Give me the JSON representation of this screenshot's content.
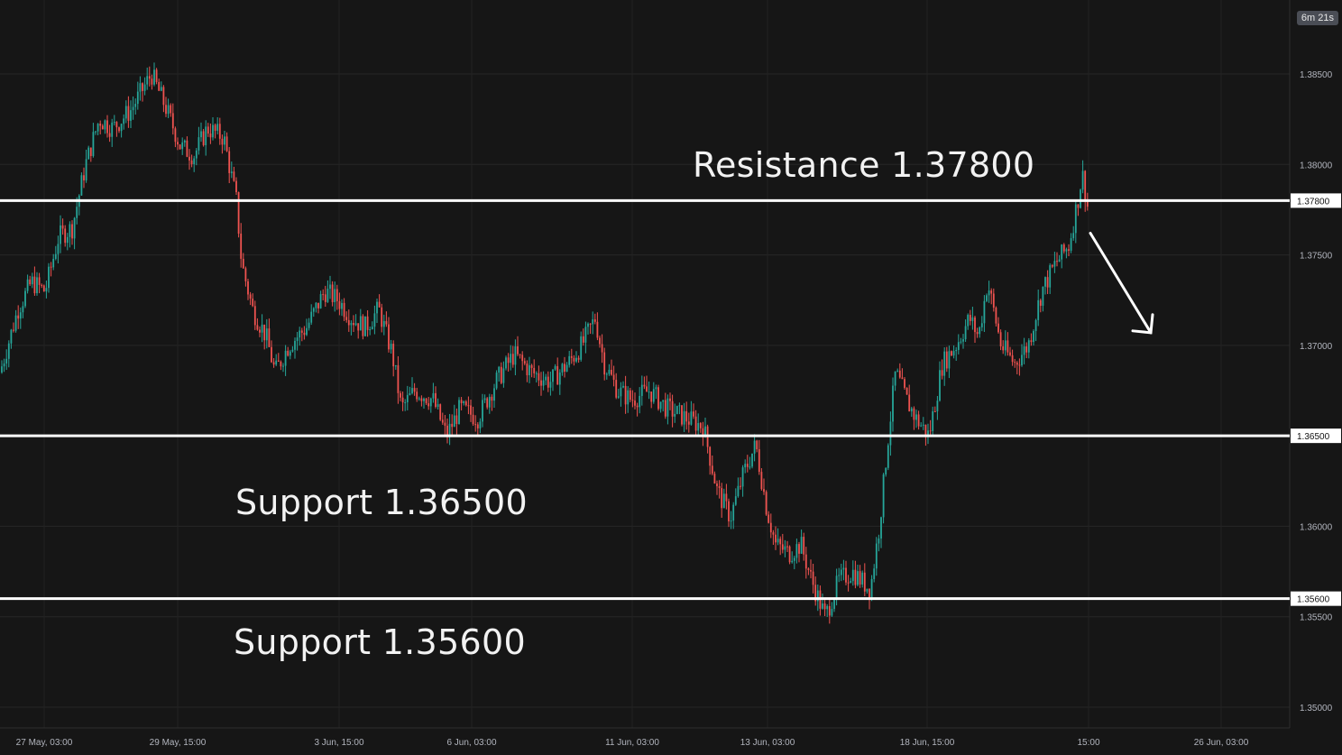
{
  "chart_data": {
    "type": "candlestick",
    "y_ticks": [
      "1.38500",
      "1.38000",
      "1.37500",
      "1.37000",
      "1.36500",
      "1.36000",
      "1.35500",
      "1.35000"
    ],
    "y_tick_values": [
      1.385,
      1.38,
      1.375,
      1.37,
      1.365,
      1.36,
      1.355,
      1.35
    ],
    "ylim": [
      1.3465,
      1.3905
    ],
    "x_ticks": [
      "27 May, 03:00",
      "29 May, 15:00",
      "3 Jun, 15:00",
      "6 Jun, 03:00",
      "11 Jun, 03:00",
      "13 Jun, 03:00",
      "18 Jun, 15:00",
      "15:00",
      "26 Jun, 03:00"
    ],
    "levels": [
      {
        "label": "1.37800",
        "value": 1.378
      },
      {
        "label": "1.36500",
        "value": 1.365
      },
      {
        "label": "1.35600",
        "value": 1.356
      }
    ],
    "annotations": {
      "resistance": "Resistance 1.37800",
      "support1": "Support 1.36500",
      "support2": "Support 1.35600"
    },
    "countdown": "6m 21s",
    "price_path": [
      [
        0,
        1.3685
      ],
      [
        20,
        1.372
      ],
      [
        35,
        1.3735
      ],
      [
        50,
        1.373
      ],
      [
        65,
        1.376
      ],
      [
        80,
        1.3765
      ],
      [
        95,
        1.38
      ],
      [
        110,
        1.3825
      ],
      [
        125,
        1.382
      ],
      [
        145,
        1.383
      ],
      [
        168,
        1.385
      ],
      [
        185,
        1.383
      ],
      [
        200,
        1.381
      ],
      [
        215,
        1.3805
      ],
      [
        230,
        1.382
      ],
      [
        248,
        1.3815
      ],
      [
        262,
        1.378
      ],
      [
        268,
        1.3745
      ],
      [
        280,
        1.372
      ],
      [
        295,
        1.3705
      ],
      [
        305,
        1.3685
      ],
      [
        320,
        1.37
      ],
      [
        340,
        1.371
      ],
      [
        360,
        1.373
      ],
      [
        375,
        1.3725
      ],
      [
        390,
        1.3715
      ],
      [
        405,
        1.371
      ],
      [
        420,
        1.372
      ],
      [
        435,
        1.3695
      ],
      [
        445,
        1.3665
      ],
      [
        460,
        1.3675
      ],
      [
        480,
        1.367
      ],
      [
        495,
        1.365
      ],
      [
        510,
        1.3665
      ],
      [
        530,
        1.366
      ],
      [
        550,
        1.368
      ],
      [
        570,
        1.3695
      ],
      [
        590,
        1.3685
      ],
      [
        610,
        1.368
      ],
      [
        630,
        1.369
      ],
      [
        645,
        1.37
      ],
      [
        660,
        1.3715
      ],
      [
        670,
        1.369
      ],
      [
        685,
        1.3675
      ],
      [
        700,
        1.367
      ],
      [
        720,
        1.3675
      ],
      [
        740,
        1.3665
      ],
      [
        760,
        1.366
      ],
      [
        780,
        1.3655
      ],
      [
        795,
        1.362
      ],
      [
        810,
        1.3605
      ],
      [
        825,
        1.363
      ],
      [
        838,
        1.3645
      ],
      [
        850,
        1.361
      ],
      [
        860,
        1.359
      ],
      [
        875,
        1.3585
      ],
      [
        888,
        1.359
      ],
      [
        900,
        1.357
      ],
      [
        915,
        1.355
      ],
      [
        930,
        1.357
      ],
      [
        945,
        1.3575
      ],
      [
        965,
        1.3565
      ],
      [
        975,
        1.36
      ],
      [
        985,
        1.365
      ],
      [
        993,
        1.3685
      ],
      [
        1005,
        1.367
      ],
      [
        1015,
        1.366
      ],
      [
        1030,
        1.365
      ],
      [
        1045,
        1.369
      ],
      [
        1060,
        1.37
      ],
      [
        1075,
        1.3715
      ],
      [
        1085,
        1.3705
      ],
      [
        1095,
        1.3735
      ],
      [
        1110,
        1.37
      ],
      [
        1125,
        1.369
      ],
      [
        1140,
        1.37
      ],
      [
        1155,
        1.373
      ],
      [
        1170,
        1.3745
      ],
      [
        1185,
        1.3755
      ],
      [
        1195,
        1.378
      ],
      [
        1200,
        1.3795
      ],
      [
        1208,
        1.377
      ]
    ],
    "arrow": {
      "from": [
        1209,
        1.3762
      ],
      "to": [
        1276,
        1.3707
      ]
    }
  }
}
